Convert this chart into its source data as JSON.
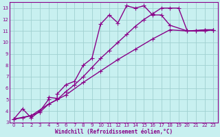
{
  "xlabel": "Windchill (Refroidissement éolien,°C)",
  "background_color": "#c8f0f0",
  "grid_color": "#a0d0d0",
  "line_color": "#880088",
  "xlim": [
    -0.5,
    23.5
  ],
  "ylim": [
    3,
    13.5
  ],
  "xticks": [
    0,
    1,
    2,
    3,
    4,
    5,
    6,
    7,
    8,
    9,
    10,
    11,
    12,
    13,
    14,
    15,
    16,
    17,
    18,
    19,
    20,
    21,
    22,
    23
  ],
  "yticks": [
    3,
    4,
    5,
    6,
    7,
    8,
    9,
    10,
    11,
    12,
    13
  ],
  "series1_x": [
    0,
    1,
    2,
    3,
    4,
    4,
    5,
    5,
    6,
    7,
    8,
    9,
    10,
    11,
    12,
    13,
    14,
    15,
    16,
    17,
    18,
    20,
    21,
    22,
    23
  ],
  "series1_y": [
    3.3,
    4.2,
    3.4,
    4.0,
    5.0,
    5.2,
    5.1,
    5.5,
    6.3,
    6.6,
    8.0,
    8.6,
    11.6,
    12.4,
    11.7,
    13.2,
    13.0,
    13.2,
    12.4,
    12.4,
    11.5,
    11.0,
    11.0,
    11.0,
    11.1
  ],
  "series2_x": [
    0,
    1,
    2,
    3,
    4,
    5,
    6,
    7,
    8,
    9,
    10,
    11,
    12,
    13,
    14,
    15,
    16,
    17,
    18,
    19,
    20,
    21,
    22,
    23
  ],
  "series2_y": [
    3.3,
    3.4,
    3.6,
    3.9,
    4.6,
    5.0,
    5.7,
    6.3,
    7.0,
    7.8,
    8.6,
    9.3,
    10.0,
    10.7,
    11.4,
    12.0,
    12.5,
    13.0,
    13.0,
    13.0,
    11.0,
    11.0,
    11.1,
    11.1
  ],
  "series3_x": [
    0,
    2,
    4,
    6,
    8,
    10,
    12,
    14,
    16,
    18,
    20,
    22,
    23
  ],
  "series3_y": [
    3.3,
    3.6,
    4.6,
    5.4,
    6.5,
    7.5,
    8.5,
    9.4,
    10.3,
    11.1,
    11.0,
    11.1,
    11.1
  ],
  "marker": "+",
  "markersize": 4,
  "linewidth": 1.0
}
